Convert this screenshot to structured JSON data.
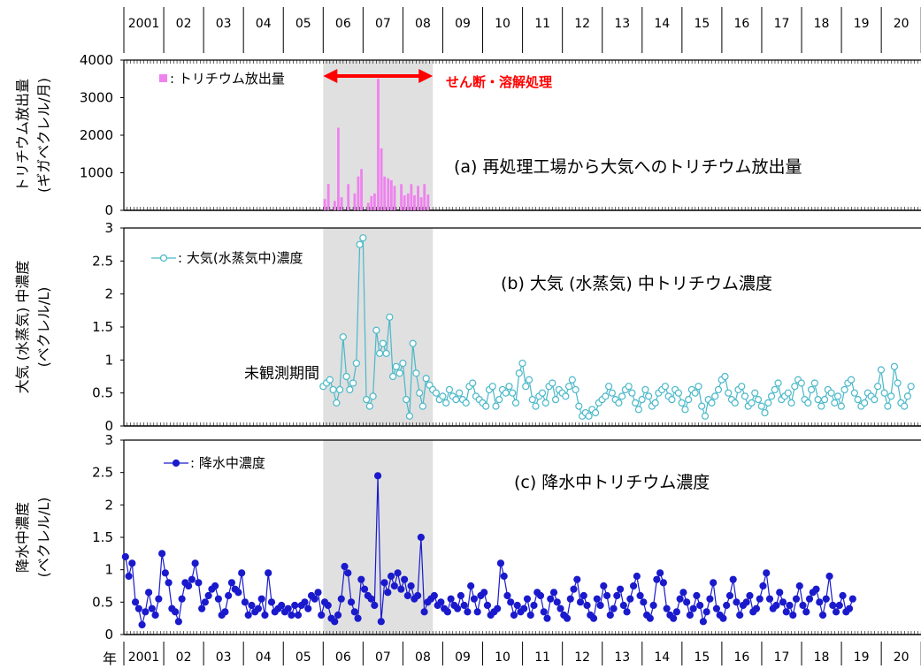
{
  "year_axis": {
    "unit_label": "年",
    "labels": [
      "2001",
      "02",
      "03",
      "04",
      "05",
      "06",
      "07",
      "08",
      "09",
      "10",
      "11",
      "12",
      "13",
      "14",
      "15",
      "16",
      "17",
      "18",
      "19",
      "20"
    ]
  },
  "shaded_period": {
    "start_year": 2006,
    "end_year": 2008.75
  },
  "annotations": {
    "shear_label": "せん断・溶解処理",
    "unobserved_label": "未観測期間"
  },
  "colors": {
    "release": "#ee82ee",
    "air": "#4ab8c8",
    "rain": "#1a1acc",
    "shade": "#e0e0e0",
    "accent": "#ff0000"
  },
  "chart_data": [
    {
      "type": "bar",
      "title": "(a) 再処理工場から大気へのトリチウム放出量",
      "ylabel_line1": "トリチウム放出量",
      "ylabel_line2": "(ギガベクレル/月)",
      "legend": "■: トリチウム放出量",
      "ylim": [
        0,
        4000
      ],
      "yticks": [
        "0",
        "1000",
        "2000",
        "3000",
        "4000"
      ],
      "x": [
        2006.04,
        2006.13,
        2006.21,
        2006.29,
        2006.38,
        2006.46,
        2006.54,
        2006.63,
        2006.71,
        2006.79,
        2006.88,
        2006.96,
        2007.04,
        2007.13,
        2007.21,
        2007.29,
        2007.38,
        2007.46,
        2007.54,
        2007.63,
        2007.71,
        2007.79,
        2007.88,
        2007.96,
        2008.04,
        2008.13,
        2008.21,
        2008.29,
        2008.38,
        2008.46,
        2008.54,
        2008.63
      ],
      "values": [
        300,
        700,
        0,
        250,
        2200,
        350,
        0,
        700,
        0,
        450,
        900,
        1100,
        0,
        200,
        380,
        450,
        3500,
        1650,
        900,
        850,
        800,
        650,
        0,
        700,
        400,
        450,
        700,
        400,
        650,
        350,
        700,
        420
      ]
    },
    {
      "type": "line",
      "title": "(b) 大気 (水蒸気) 中トリチウム濃度",
      "ylabel_line1": "大気 (水蒸気) 中濃度",
      "ylabel_line2": "(ベクレル/L)",
      "legend": "-○-: 大気(水蒸気中)濃度",
      "ylim": [
        0,
        3
      ],
      "yticks": [
        "0",
        "0.5",
        "1",
        "1.5",
        "2",
        "2.5",
        "3"
      ],
      "x_start": 2006.0,
      "x_step": 0.0833,
      "values": [
        0.6,
        0.65,
        0.7,
        0.55,
        0.35,
        0.55,
        1.35,
        0.75,
        0.55,
        0.65,
        0.95,
        2.75,
        2.85,
        0.4,
        0.3,
        0.45,
        1.45,
        1.1,
        1.25,
        1.1,
        1.65,
        0.75,
        0.9,
        0.8,
        0.95,
        0.4,
        0.15,
        1.25,
        0.8,
        0.5,
        0.3,
        0.72,
        0.62,
        0.55,
        0.5,
        0.4,
        0.45,
        0.35,
        0.55,
        0.45,
        0.4,
        0.5,
        0.4,
        0.35,
        0.6,
        0.65,
        0.45,
        0.4,
        0.35,
        0.3,
        0.55,
        0.6,
        0.3,
        0.4,
        0.55,
        0.5,
        0.6,
        0.5,
        0.35,
        0.8,
        0.95,
        0.6,
        0.7,
        0.4,
        0.3,
        0.45,
        0.5,
        0.35,
        0.6,
        0.65,
        0.4,
        0.55,
        0.5,
        0.45,
        0.6,
        0.7,
        0.55,
        0.3,
        0.15,
        0.2,
        0.15,
        0.25,
        0.2,
        0.35,
        0.4,
        0.45,
        0.6,
        0.5,
        0.4,
        0.35,
        0.45,
        0.55,
        0.6,
        0.5,
        0.35,
        0.25,
        0.4,
        0.55,
        0.45,
        0.3,
        0.35,
        0.5,
        0.55,
        0.6,
        0.45,
        0.4,
        0.55,
        0.5,
        0.35,
        0.25,
        0.4,
        0.55,
        0.5,
        0.6,
        0.3,
        0.15,
        0.4,
        0.35,
        0.45,
        0.55,
        0.7,
        0.75,
        0.5,
        0.4,
        0.35,
        0.55,
        0.6,
        0.45,
        0.3,
        0.35,
        0.5,
        0.4,
        0.3,
        0.2,
        0.35,
        0.45,
        0.55,
        0.65,
        0.4,
        0.45,
        0.5,
        0.35,
        0.6,
        0.7,
        0.65,
        0.4,
        0.35,
        0.55,
        0.65,
        0.4,
        0.3,
        0.4,
        0.55,
        0.5,
        0.35,
        0.45,
        0.3,
        0.55,
        0.65,
        0.7,
        0.5,
        0.4,
        0.3,
        0.35,
        0.5,
        0.45,
        0.4,
        0.6,
        0.85,
        0.5,
        0.3,
        0.45,
        0.9,
        0.65,
        0.35,
        0.3,
        0.45,
        0.6
      ]
    },
    {
      "type": "line",
      "title": "(c) 降水中トリチウム濃度",
      "ylabel_line1": "降水中濃度",
      "ylabel_line2": "(ベクレル/L)",
      "legend": "-●-: 降水中濃度",
      "ylim": [
        0,
        3
      ],
      "yticks": [
        "0",
        "0.5",
        "1",
        "1.5",
        "2",
        "2.5",
        "3"
      ],
      "x_start": 2001.04,
      "x_step": 0.0833,
      "values": [
        1.2,
        0.9,
        1.1,
        0.5,
        0.4,
        0.15,
        0.35,
        0.65,
        0.4,
        0.3,
        0.55,
        1.25,
        0.95,
        0.8,
        0.4,
        0.35,
        0.2,
        0.55,
        0.8,
        0.75,
        0.85,
        1.1,
        0.8,
        0.4,
        0.5,
        0.6,
        0.7,
        0.75,
        0.55,
        0.3,
        0.35,
        0.6,
        0.8,
        0.7,
        0.65,
        0.95,
        0.5,
        0.3,
        0.45,
        0.35,
        0.4,
        0.55,
        0.3,
        0.95,
        0.5,
        0.35,
        0.4,
        0.45,
        0.35,
        0.4,
        0.3,
        0.45,
        0.3,
        0.45,
        0.5,
        0.4,
        0.6,
        0.55,
        0.65,
        0.3,
        0.5,
        0.45,
        0.25,
        0.2,
        0.3,
        0.55,
        1.05,
        0.95,
        0.5,
        0.35,
        0.25,
        0.85,
        0.7,
        0.6,
        0.55,
        0.45,
        2.45,
        0.2,
        0.8,
        0.65,
        0.9,
        0.75,
        0.95,
        0.7,
        0.85,
        0.6,
        0.75,
        0.55,
        0.6,
        1.5,
        0.35,
        0.5,
        0.55,
        0.6,
        0.45,
        0.5,
        0.4,
        0.35,
        0.55,
        0.45,
        0.4,
        0.6,
        0.45,
        0.35,
        0.75,
        0.55,
        0.35,
        0.6,
        0.65,
        0.45,
        0.3,
        0.35,
        0.4,
        1.1,
        0.9,
        0.6,
        0.5,
        0.3,
        0.45,
        0.35,
        0.4,
        0.55,
        0.3,
        0.45,
        0.65,
        0.6,
        0.35,
        0.25,
        0.55,
        0.65,
        0.5,
        0.4,
        0.3,
        0.25,
        0.55,
        0.7,
        0.85,
        0.5,
        0.6,
        0.45,
        0.3,
        0.25,
        0.55,
        0.45,
        0.75,
        0.6,
        0.3,
        0.4,
        0.6,
        0.7,
        0.45,
        0.35,
        0.55,
        0.75,
        0.9,
        0.6,
        0.5,
        0.3,
        0.25,
        0.45,
        0.85,
        0.95,
        0.8,
        0.4,
        0.3,
        0.25,
        0.35,
        0.55,
        0.65,
        0.5,
        0.3,
        0.4,
        0.6,
        0.45,
        0.2,
        0.35,
        0.55,
        0.8,
        0.4,
        0.3,
        0.25,
        0.45,
        0.6,
        0.85,
        0.5,
        0.3,
        0.45,
        0.5,
        0.6,
        0.35,
        0.4,
        0.55,
        0.75,
        0.95,
        0.55,
        0.4,
        0.45,
        0.65,
        0.5,
        0.35,
        0.45,
        0.3,
        0.55,
        0.75,
        0.45,
        0.35,
        0.55,
        0.65,
        0.7,
        0.5,
        0.3,
        0.55,
        0.9,
        0.45,
        0.35,
        0.45,
        0.6,
        0.35,
        0.4,
        0.55
      ]
    }
  ]
}
